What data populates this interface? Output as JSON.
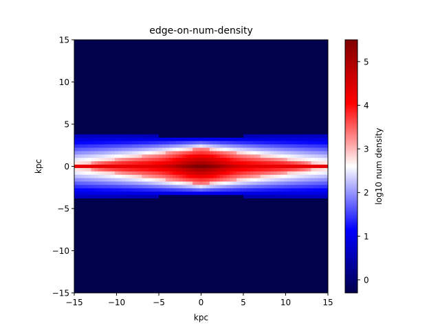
{
  "chart_data": {
    "type": "heatmap",
    "title": "edge-on-num-density",
    "xlabel": "kpc",
    "ylabel": "kpc",
    "xlim": [
      -15,
      15
    ],
    "ylim": [
      -15,
      15
    ],
    "x_ticks": [
      -15,
      -10,
      -5,
      0,
      5,
      10,
      15
    ],
    "y_ticks": [
      -15,
      -10,
      -5,
      0,
      5,
      10,
      15
    ],
    "x_tick_labels": [
      "−15",
      "−10",
      "−5",
      "0",
      "5",
      "10",
      "15"
    ],
    "y_tick_labels": [
      "−15",
      "−10",
      "−5",
      "0",
      "5",
      "10",
      "15"
    ],
    "colormap": "seismic",
    "colorbar": {
      "label": "log10 num density",
      "range": [
        -0.3,
        5.5
      ],
      "ticks": [
        0,
        1,
        2,
        3,
        4,
        5
      ],
      "tick_labels": [
        "0",
        "1",
        "2",
        "3",
        "4",
        "5"
      ]
    },
    "grid": false,
    "density_model": {
      "description_of_field": "edge-on disk: peak at center, decreasing radially and vertically",
      "peak_value": 5.5,
      "background_value": -0.3,
      "disk_radius_kpc": 15,
      "max_half_thickness_kpc": 3.8,
      "midplane_ridge_value": 4.3
    },
    "colors": {
      "dark_blue": "#00004c",
      "blue": "#0000ff",
      "white": "#ffffff",
      "red": "#ff0000",
      "dark_red": "#800000"
    }
  }
}
